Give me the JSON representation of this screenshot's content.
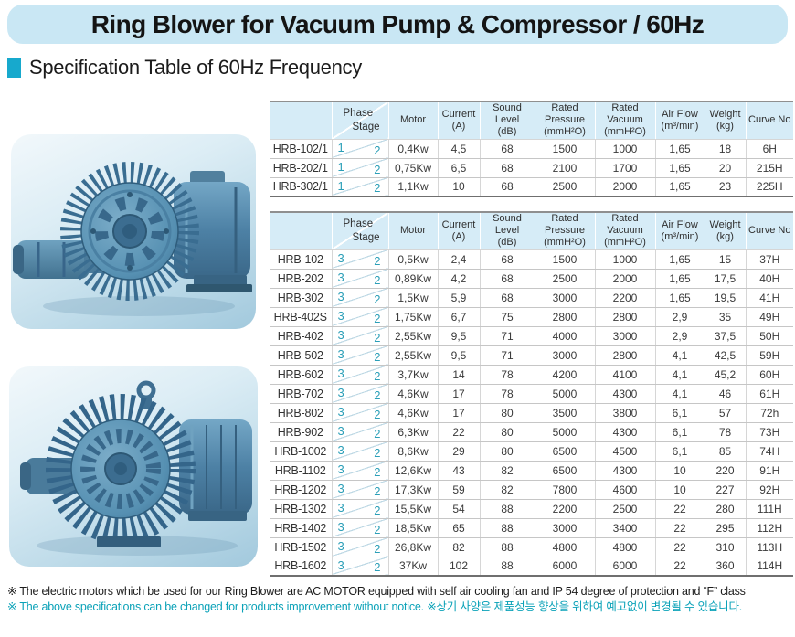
{
  "page_title": "Ring Blower for Vacuum Pump & Compressor / 60Hz",
  "section_title": "Specification Table of 60Hz Frequency",
  "colors": {
    "title_bar_bg": "#c9e7f4",
    "section_bullet": "#17a9cd",
    "table_header_bg": "#d6ecf7",
    "phase_stage_accent": "#2b9fb8",
    "note_teal": "#0ba2b8",
    "photo_bg_top": "#f2f8fb",
    "photo_bg_bottom": "#a2c9dd"
  },
  "photos": [
    {
      "name": "ring-blower-side-view"
    },
    {
      "name": "ring-blower-front-view"
    }
  ],
  "columns": [
    {
      "key": "model",
      "label": ""
    },
    {
      "key": "phase_stage",
      "label_top": "Phase",
      "label_bottom": "Stage"
    },
    {
      "key": "motor",
      "label": "Motor"
    },
    {
      "key": "current",
      "label": "Current",
      "sub": "(A)"
    },
    {
      "key": "sound",
      "label": "Sound Level",
      "sub": "(dB)"
    },
    {
      "key": "pressure",
      "label": "Rated Pressure",
      "sub": "(mmH²O)"
    },
    {
      "key": "vacuum",
      "label": "Rated Vacuum",
      "sub": "(mmH²O)"
    },
    {
      "key": "airflow",
      "label": "Air Flow",
      "sub": "(m³/min)"
    },
    {
      "key": "weight",
      "label": "Weight",
      "sub": "(kg)"
    },
    {
      "key": "curve",
      "label": "Curve No"
    }
  ],
  "tables": [
    {
      "name": "single-phase-models",
      "rows": [
        {
          "model": "HRB-102/1",
          "phase": "1",
          "stage": "2",
          "motor": "0,4Kw",
          "current": "4,5",
          "sound": "68",
          "pressure": "1500",
          "vacuum": "1000",
          "airflow": "1,65",
          "weight": "18",
          "curve": "6H"
        },
        {
          "model": "HRB-202/1",
          "phase": "1",
          "stage": "2",
          "motor": "0,75Kw",
          "current": "6,5",
          "sound": "68",
          "pressure": "2100",
          "vacuum": "1700",
          "airflow": "1,65",
          "weight": "20",
          "curve": "215H"
        },
        {
          "model": "HRB-302/1",
          "phase": "1",
          "stage": "2",
          "motor": "1,1Kw",
          "current": "10",
          "sound": "68",
          "pressure": "2500",
          "vacuum": "2000",
          "airflow": "1,65",
          "weight": "23",
          "curve": "225H"
        }
      ]
    },
    {
      "name": "three-phase-models",
      "rows": [
        {
          "model": "HRB-102",
          "phase": "3",
          "stage": "2",
          "motor": "0,5Kw",
          "current": "2,4",
          "sound": "68",
          "pressure": "1500",
          "vacuum": "1000",
          "airflow": "1,65",
          "weight": "15",
          "curve": "37H"
        },
        {
          "model": "HRB-202",
          "phase": "3",
          "stage": "2",
          "motor": "0,89Kw",
          "current": "4,2",
          "sound": "68",
          "pressure": "2500",
          "vacuum": "2000",
          "airflow": "1,65",
          "weight": "17,5",
          "curve": "40H"
        },
        {
          "model": "HRB-302",
          "phase": "3",
          "stage": "2",
          "motor": "1,5Kw",
          "current": "5,9",
          "sound": "68",
          "pressure": "3000",
          "vacuum": "2200",
          "airflow": "1,65",
          "weight": "19,5",
          "curve": "41H"
        },
        {
          "model": "HRB-402S",
          "phase": "3",
          "stage": "2",
          "motor": "1,75Kw",
          "current": "6,7",
          "sound": "75",
          "pressure": "2800",
          "vacuum": "2800",
          "airflow": "2,9",
          "weight": "35",
          "curve": "49H"
        },
        {
          "model": "HRB-402",
          "phase": "3",
          "stage": "2",
          "motor": "2,55Kw",
          "current": "9,5",
          "sound": "71",
          "pressure": "4000",
          "vacuum": "3000",
          "airflow": "2,9",
          "weight": "37,5",
          "curve": "50H"
        },
        {
          "model": "HRB-502",
          "phase": "3",
          "stage": "2",
          "motor": "2,55Kw",
          "current": "9,5",
          "sound": "71",
          "pressure": "3000",
          "vacuum": "2800",
          "airflow": "4,1",
          "weight": "42,5",
          "curve": "59H"
        },
        {
          "model": "HRB-602",
          "phase": "3",
          "stage": "2",
          "motor": "3,7Kw",
          "current": "14",
          "sound": "78",
          "pressure": "4200",
          "vacuum": "4100",
          "airflow": "4,1",
          "weight": "45,2",
          "curve": "60H"
        },
        {
          "model": "HRB-702",
          "phase": "3",
          "stage": "2",
          "motor": "4,6Kw",
          "current": "17",
          "sound": "78",
          "pressure": "5000",
          "vacuum": "4300",
          "airflow": "4,1",
          "weight": "46",
          "curve": "61H"
        },
        {
          "model": "HRB-802",
          "phase": "3",
          "stage": "2",
          "motor": "4,6Kw",
          "current": "17",
          "sound": "80",
          "pressure": "3500",
          "vacuum": "3800",
          "airflow": "6,1",
          "weight": "57",
          "curve": "72h"
        },
        {
          "model": "HRB-902",
          "phase": "3",
          "stage": "2",
          "motor": "6,3Kw",
          "current": "22",
          "sound": "80",
          "pressure": "5000",
          "vacuum": "4300",
          "airflow": "6,1",
          "weight": "78",
          "curve": "73H"
        },
        {
          "model": "HRB-1002",
          "phase": "3",
          "stage": "2",
          "motor": "8,6Kw",
          "current": "29",
          "sound": "80",
          "pressure": "6500",
          "vacuum": "4500",
          "airflow": "6,1",
          "weight": "85",
          "curve": "74H"
        },
        {
          "model": "HRB-1102",
          "phase": "3",
          "stage": "2",
          "motor": "12,6Kw",
          "current": "43",
          "sound": "82",
          "pressure": "6500",
          "vacuum": "4300",
          "airflow": "10",
          "weight": "220",
          "curve": "91H"
        },
        {
          "model": "HRB-1202",
          "phase": "3",
          "stage": "2",
          "motor": "17,3Kw",
          "current": "59",
          "sound": "82",
          "pressure": "7800",
          "vacuum": "4600",
          "airflow": "10",
          "weight": "227",
          "curve": "92H"
        },
        {
          "model": "HRB-1302",
          "phase": "3",
          "stage": "2",
          "motor": "15,5Kw",
          "current": "54",
          "sound": "88",
          "pressure": "2200",
          "vacuum": "2500",
          "airflow": "22",
          "weight": "280",
          "curve": "111H"
        },
        {
          "model": "HRB-1402",
          "phase": "3",
          "stage": "2",
          "motor": "18,5Kw",
          "current": "65",
          "sound": "88",
          "pressure": "3000",
          "vacuum": "3400",
          "airflow": "22",
          "weight": "295",
          "curve": "112H"
        },
        {
          "model": "HRB-1502",
          "phase": "3",
          "stage": "2",
          "motor": "26,8Kw",
          "current": "82",
          "sound": "88",
          "pressure": "4800",
          "vacuum": "4800",
          "airflow": "22",
          "weight": "310",
          "curve": "113H"
        },
        {
          "model": "HRB-1602",
          "phase": "3",
          "stage": "2",
          "motor": "37Kw",
          "current": "102",
          "sound": "88",
          "pressure": "6000",
          "vacuum": "6000",
          "airflow": "22",
          "weight": "360",
          "curve": "114H"
        }
      ]
    }
  ],
  "notes": [
    "※ The electric motors which be used for our Ring Blower are AC MOTOR equipped with self air cooling fan and IP 54 degree of protection and “F” class",
    "※ The above specifications can be changed for products improvement without notice.  ※상기 사양은 제품성능 향상을 위하여 예고없이 변경될 수 있습니다."
  ]
}
